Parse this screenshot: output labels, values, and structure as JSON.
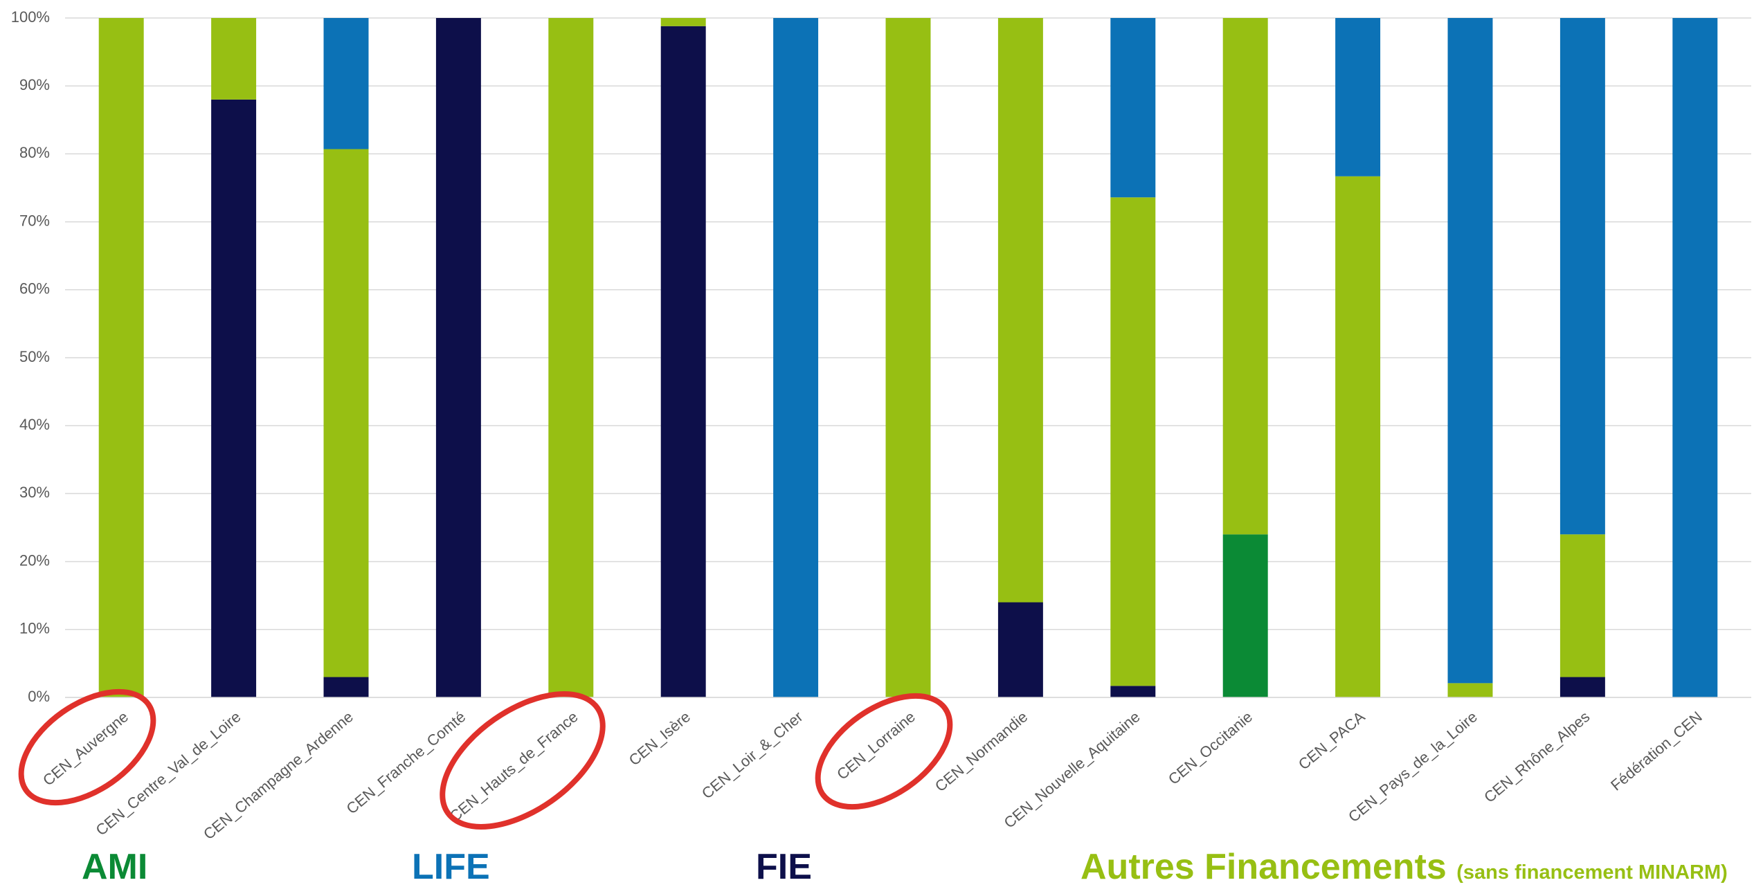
{
  "chart_data": {
    "type": "stacked_bar_percent",
    "categories": [
      "CEN_Auvergne",
      "CEN_Centre_Val_de_Loire",
      "CEN_Champagne_Ardenne",
      "CEN_Franche_Comté",
      "CEN_Hauts_de_France",
      "CEN_Isère",
      "CEN_Loir_&_Cher",
      "CEN_Lorraine",
      "CEN_Normandie",
      "CEN_Nouvelle_Aquitaine",
      "CEN_Occitanie",
      "CEN_PACA",
      "CEN_Pays_de_la_Loire",
      "CEN_Rhône_Alpes",
      "Fédération_CEN"
    ],
    "series": [
      {
        "name": "AMI",
        "color": "#0b8a35",
        "values": [
          0,
          0,
          0,
          0,
          0,
          0,
          0,
          0,
          0,
          0,
          24,
          0,
          0,
          0,
          0
        ]
      },
      {
        "name": "FIE",
        "color": "#0d0f4a",
        "values": [
          0,
          88,
          3,
          100,
          0,
          98.8,
          0,
          0,
          14,
          1.7,
          0,
          0,
          0,
          3,
          0
        ]
      },
      {
        "name": "Autres Financements",
        "color": "#97bf13",
        "values": [
          100,
          12,
          77.7,
          0,
          100,
          1.2,
          0,
          100,
          86,
          71.9,
          76,
          76.7,
          2.1,
          21,
          0
        ]
      },
      {
        "name": "LIFE",
        "color": "#0c72b6",
        "values": [
          0,
          0,
          19.3,
          0,
          0,
          0,
          100,
          0,
          0,
          26.4,
          0,
          23.3,
          97.9,
          76,
          100
        ]
      }
    ],
    "legend_note": "(sans financement MINARM)",
    "ylim": [
      0,
      100
    ],
    "yticks": [
      {
        "value": 0,
        "label": "0%"
      },
      {
        "value": 10,
        "label": "10%"
      },
      {
        "value": 20,
        "label": "20%"
      },
      {
        "value": 30,
        "label": "30%"
      },
      {
        "value": 40,
        "label": "40%"
      },
      {
        "value": 50,
        "label": "50%"
      },
      {
        "value": 60,
        "label": "60%"
      },
      {
        "value": 70,
        "label": "70%"
      },
      {
        "value": 80,
        "label": "80%"
      },
      {
        "value": 90,
        "label": "90%"
      },
      {
        "value": 100,
        "label": "100%"
      }
    ],
    "grid": true
  }
}
